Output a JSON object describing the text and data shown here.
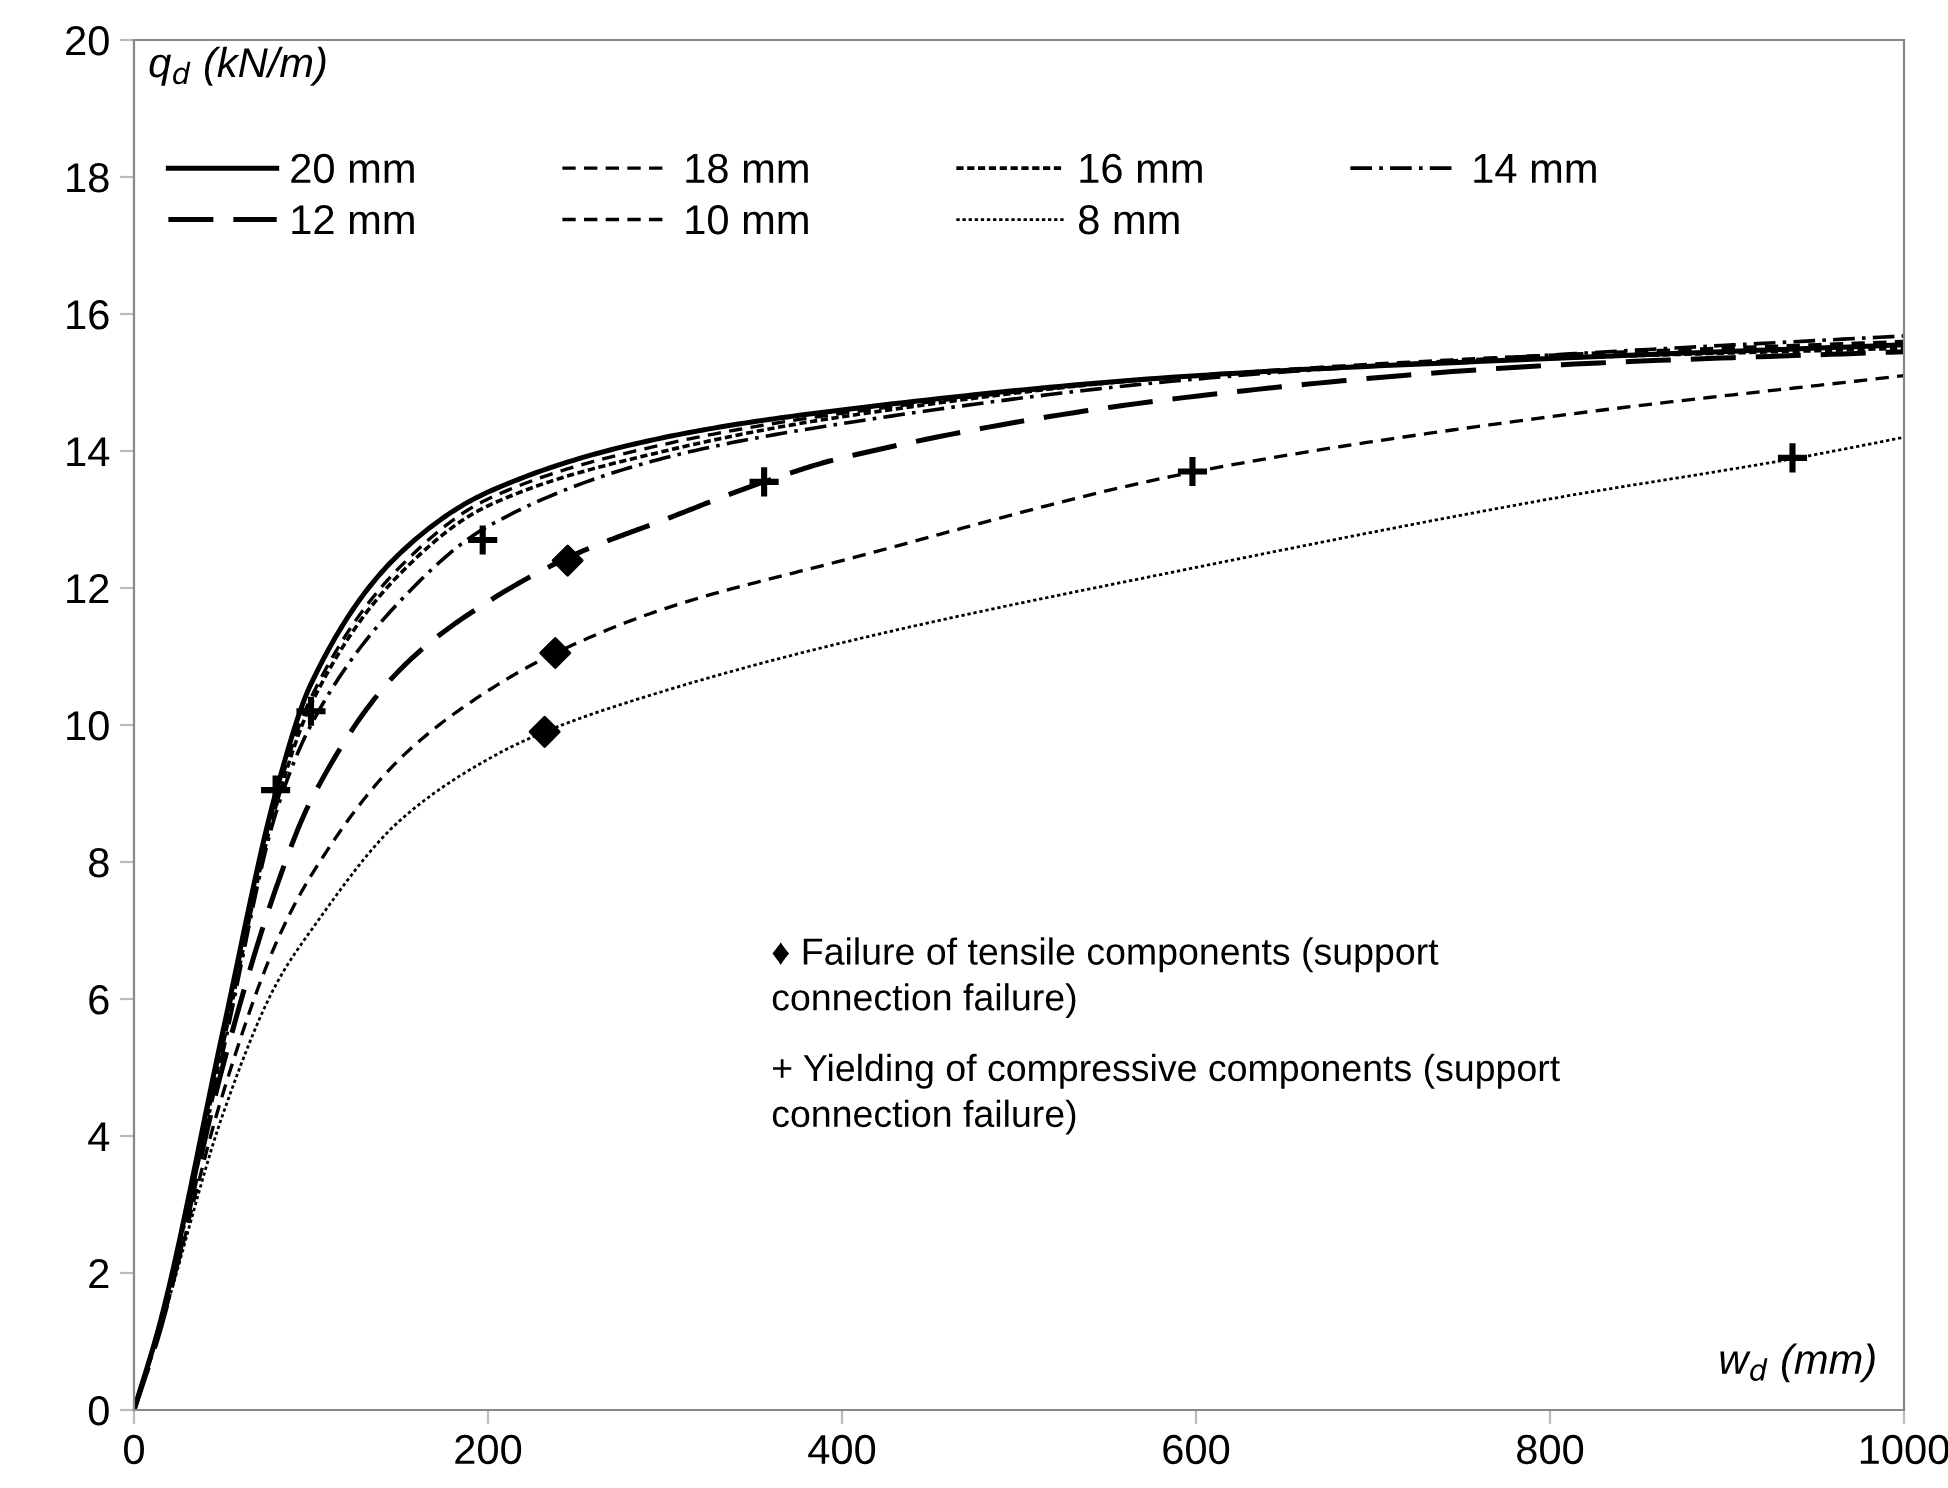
{
  "chart_data": {
    "type": "line",
    "xlabel": "w$_{d}$ (mm)",
    "ylabel": "q$_{d}$ (kN/m)",
    "xlim": [
      0,
      1000
    ],
    "xticks": [
      0,
      200,
      400,
      600,
      800,
      1000
    ],
    "ylim": [
      0,
      20
    ],
    "yticks": [
      0,
      2,
      4,
      6,
      8,
      10,
      12,
      14,
      16,
      18,
      20
    ],
    "grid": false,
    "legend": "top left",
    "marker": "none",
    "series": [
      {
        "name": "20 mm",
        "color": "#000000",
        "line_style": "solid",
        "x": [
          0,
          15,
          50,
          80,
          100,
          150,
          200,
          300,
          400,
          600,
          800,
          1000
        ],
        "values": [
          0,
          1.3,
          5.5,
          9.0,
          10.6,
          12.5,
          13.4,
          14.2,
          14.6,
          15.1,
          15.35,
          15.55
        ]
      },
      {
        "name": "18 mm",
        "color": "#000000",
        "line_style": "dashed",
        "x": [
          0,
          15,
          50,
          80,
          100,
          150,
          200,
          300,
          400,
          600,
          800,
          1000
        ],
        "values": [
          0,
          1.3,
          5.4,
          8.9,
          10.4,
          12.3,
          13.3,
          14.1,
          14.55,
          15.1,
          15.4,
          15.6
        ]
      },
      {
        "name": "16 mm",
        "color": "#000000",
        "line_style": "finedash",
        "x": [
          0,
          15,
          50,
          80,
          100,
          150,
          200,
          300,
          400,
          600,
          800,
          1000
        ],
        "values": [
          0,
          1.3,
          5.3,
          8.8,
          10.3,
          12.2,
          13.2,
          14.0,
          14.5,
          15.1,
          15.35,
          15.5
        ]
      },
      {
        "name": "14 mm",
        "color": "#000000",
        "line_style": "dashdot",
        "x": [
          0,
          15,
          50,
          80,
          100,
          150,
          200,
          300,
          400,
          600,
          800,
          1000
        ],
        "values": [
          0,
          1.3,
          5.2,
          8.7,
          10.0,
          11.8,
          12.9,
          13.9,
          14.4,
          15.05,
          15.4,
          15.68
        ]
      },
      {
        "name": "12 mm",
        "color": "#000000",
        "line_style": "longdash",
        "x": [
          0,
          15,
          50,
          80,
          100,
          150,
          200,
          250,
          300,
          356,
          400,
          600,
          800,
          1000
        ],
        "values": [
          0,
          1.2,
          5.0,
          7.6,
          8.9,
          10.8,
          11.8,
          12.5,
          13.0,
          13.55,
          13.9,
          14.8,
          15.25,
          15.45
        ]
      },
      {
        "name": "10 mm",
        "color": "#000000",
        "line_style": "dashed",
        "x": [
          0,
          15,
          50,
          80,
          100,
          150,
          200,
          238,
          300,
          400,
          600,
          800,
          1000
        ],
        "values": [
          0,
          1.2,
          4.6,
          6.8,
          7.8,
          9.5,
          10.5,
          11.05,
          11.7,
          12.4,
          13.7,
          14.5,
          15.1
        ]
      },
      {
        "name": "8 mm",
        "color": "#000000",
        "line_style": "dotted",
        "x": [
          0,
          15,
          50,
          80,
          100,
          150,
          200,
          232,
          300,
          400,
          600,
          800,
          940,
          1000
        ],
        "values": [
          0,
          1.2,
          4.3,
          6.2,
          7.0,
          8.6,
          9.5,
          9.9,
          10.5,
          11.2,
          12.3,
          13.3,
          13.9,
          14.2
        ]
      },
      {
        "type": "scatter",
        "color": "#000000",
        "marker": "diamond",
        "x": [
          245,
          238,
          232
        ],
        "values": [
          12.4,
          11.05,
          9.9
        ]
      },
      {
        "type": "scatter",
        "color": "#000000",
        "marker": "cross",
        "x": [
          80,
          100,
          197,
          356,
          598,
          937
        ],
        "values": [
          9.05,
          10.2,
          12.7,
          13.55,
          13.7,
          13.9
        ]
      }
    ],
    "annotations": [
      "♦ Failure of tensile components (support\nconnection failure)",
      "+ Yielding of compressive components (support\nconnection failure)"
    ]
  }
}
